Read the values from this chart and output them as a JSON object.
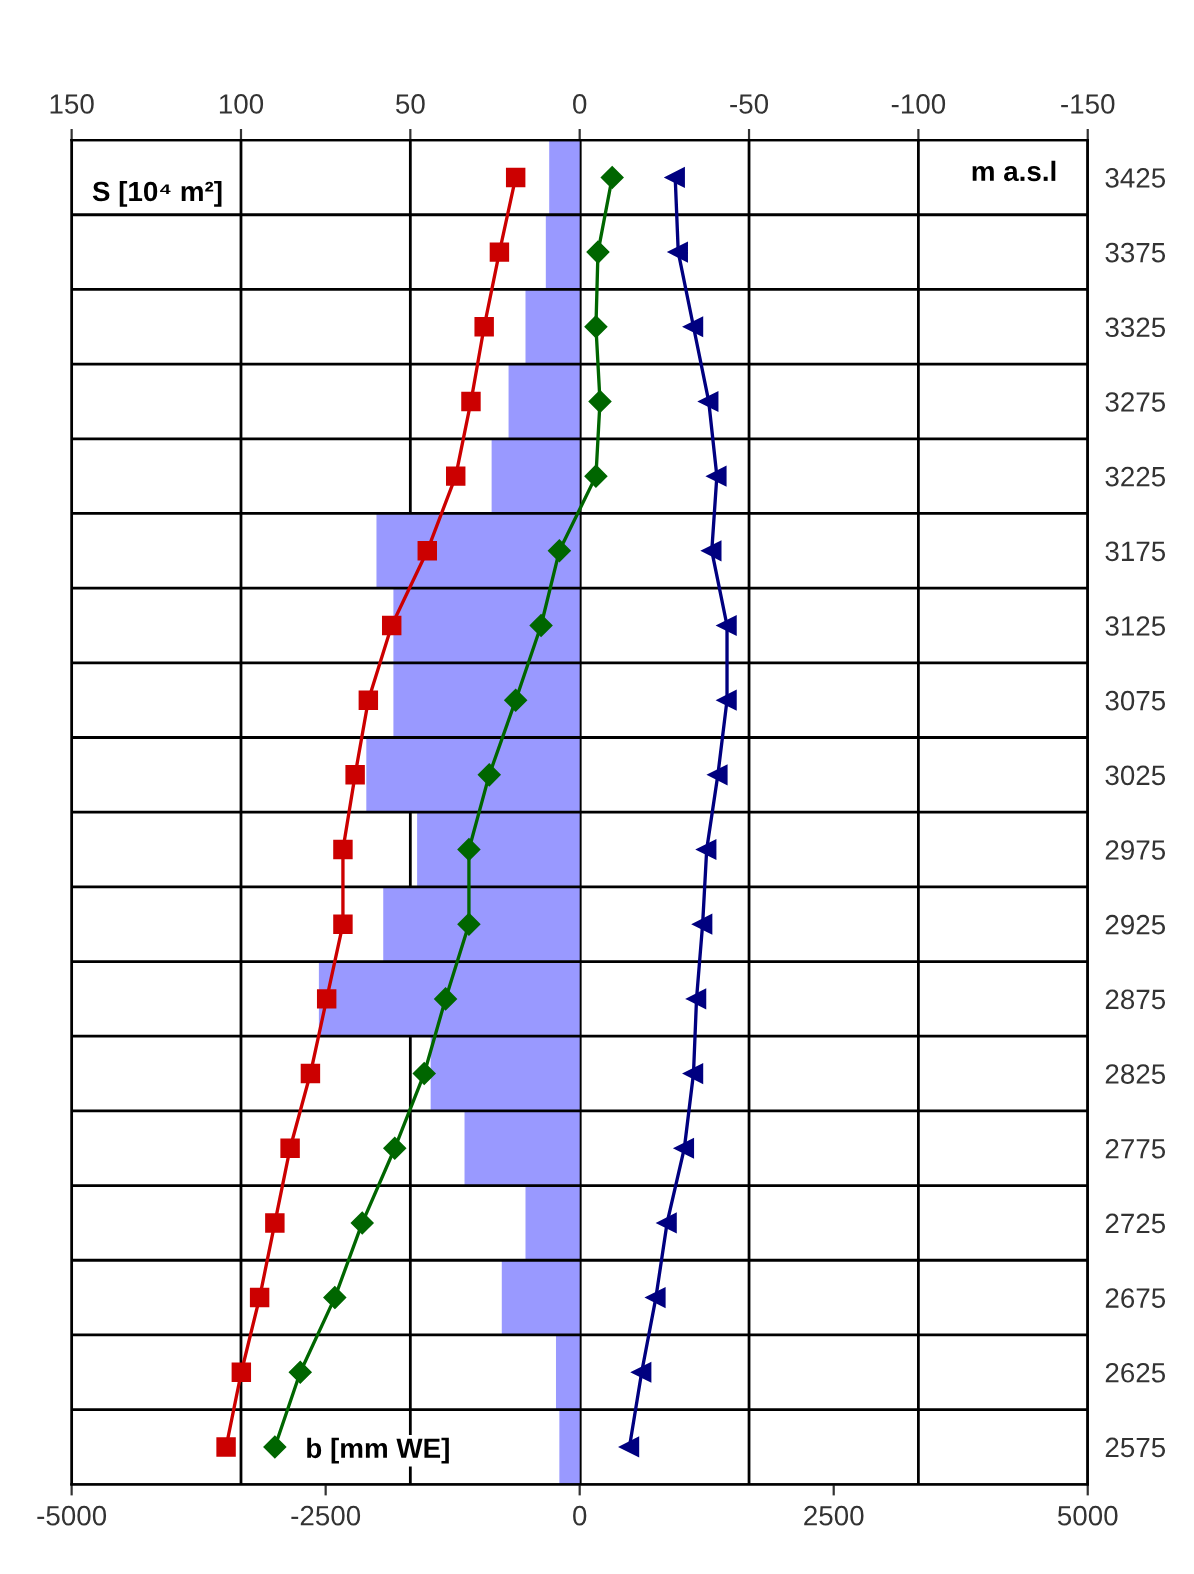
{
  "chart_data": {
    "type": "bar",
    "orientation": "horizontal",
    "categories": [
      "3425",
      "3375",
      "3325",
      "3275",
      "3225",
      "3175",
      "3125",
      "3075",
      "3025",
      "2975",
      "2925",
      "2875",
      "2825",
      "2775",
      "2725",
      "2675",
      "2625",
      "2575"
    ],
    "series": [
      {
        "axis": "x2",
        "color": "#9999ff",
        "values": [
          9,
          10,
          16,
          21,
          26,
          60,
          55,
          55,
          63,
          48,
          58,
          77,
          44,
          34,
          16,
          23,
          7,
          6
        ]
      },
      {
        "type": "line",
        "color": "#cc0000",
        "marker": "square",
        "values": [
          -630,
          -790,
          -940,
          -1070,
          -1220,
          -1500,
          -1850,
          -2080,
          -2210,
          -2330,
          -2330,
          -2490,
          -2650,
          -2850,
          -3000,
          -3150,
          -3330,
          -3480
        ]
      },
      {
        "type": "line",
        "color": "#006600",
        "marker": "diamond",
        "values": [
          320,
          180,
          160,
          200,
          160,
          -200,
          -380,
          -630,
          -890,
          -1090,
          -1090,
          -1320,
          -1530,
          -1820,
          -2140,
          -2410,
          -2750,
          -3000
        ]
      },
      {
        "type": "line",
        "color": "#000080",
        "marker": "triangle",
        "values": [
          940,
          970,
          1120,
          1270,
          1350,
          1300,
          1450,
          1450,
          1360,
          1250,
          1210,
          1150,
          1120,
          1030,
          860,
          750,
          610,
          490
        ]
      }
    ],
    "xlim": [
      -5000,
      5000
    ],
    "xticks": [
      -5000,
      -2500,
      0,
      2500,
      5000
    ],
    "x2lim": [
      150,
      -150
    ],
    "x2ticks": [
      150,
      100,
      50,
      0,
      -50,
      -100,
      -150
    ],
    "x2label": "S [10⁴ m²]",
    "xlabel": "b [mm WE]",
    "ylabel": "m a.s.l",
    "grid": true,
    "legend": false,
    "line_style": "solid"
  }
}
